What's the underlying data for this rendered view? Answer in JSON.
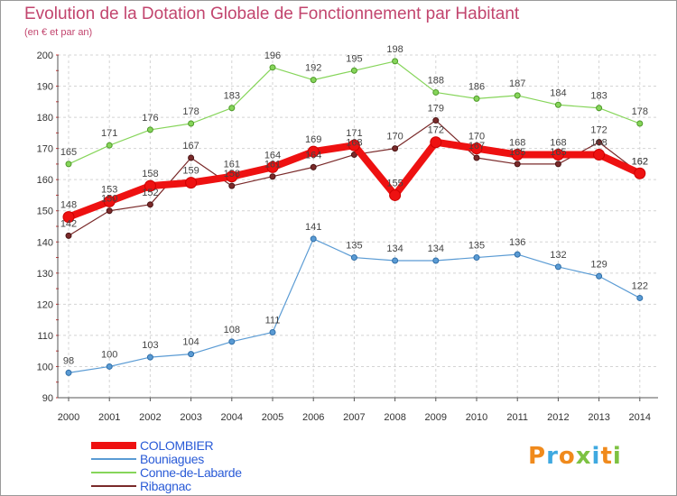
{
  "title": "Evolution de la Dotation Globale de Fonctionnement par Habitant",
  "subtitle": "(en € et par an)",
  "logo": {
    "text": "Proxiti",
    "colors": [
      "#f08a1c",
      "#3fa9e0",
      "#f08a1c",
      "#7dc242",
      "#3fa9e0",
      "#f08a1c",
      "#7dc242"
    ]
  },
  "chart_data": {
    "type": "line",
    "title": "Evolution de la Dotation Globale de Fonctionnement par Habitant",
    "subtitle": "(en € et par an)",
    "x": [
      "2000",
      "2001",
      "2002",
      "2003",
      "2004",
      "2005",
      "2006",
      "2007",
      "2008",
      "2009",
      "2010",
      "2011",
      "2012",
      "2013",
      "2014"
    ],
    "ylim": [
      90,
      200
    ],
    "yticks": [
      "90",
      "100",
      "110",
      "120",
      "130",
      "140",
      "150",
      "160",
      "170",
      "180",
      "190",
      "200"
    ],
    "grid": true,
    "legend_position": "bottom-left",
    "series": [
      {
        "name": "COLOMBIER",
        "color": "#ee1111",
        "values": [
          148,
          153,
          158,
          159,
          161,
          164,
          169,
          171,
          155,
          172,
          170,
          168,
          168,
          168,
          162
        ]
      },
      {
        "name": "Bouniagues",
        "color": "#5a9bd4",
        "values": [
          98,
          100,
          103,
          104,
          108,
          111,
          141,
          135,
          134,
          134,
          135,
          136,
          132,
          129,
          122
        ]
      },
      {
        "name": "Conne-de-Labarde",
        "color": "#86d55a",
        "values": [
          165,
          171,
          176,
          178,
          183,
          196,
          192,
          195,
          198,
          188,
          186,
          187,
          184,
          183,
          178
        ]
      },
      {
        "name": "Ribagnac",
        "color": "#7a2a2a",
        "values": [
          142,
          150,
          152,
          167,
          158,
          161,
          164,
          168,
          170,
          179,
          167,
          165,
          165,
          172,
          162
        ]
      }
    ]
  }
}
